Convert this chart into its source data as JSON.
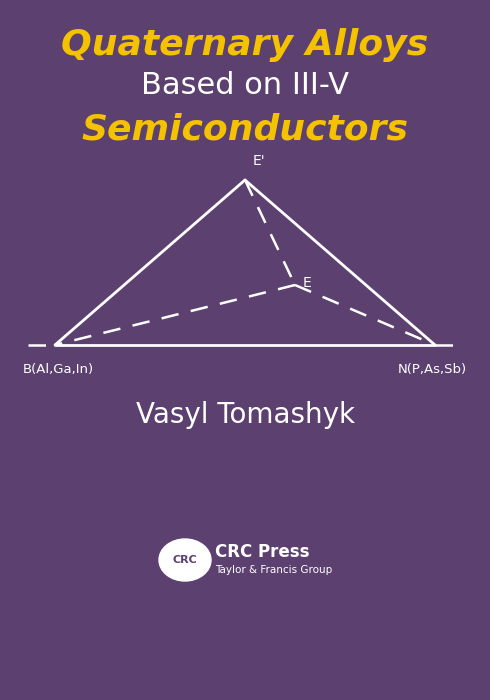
{
  "bg_color": "#5c4070",
  "title_line1": "Quaternary Alloys",
  "title_line2": "Based on III-V",
  "title_line3": "Semiconductors",
  "title_color1": "#f5c200",
  "title_color2": "#ffffff",
  "author": "Vasyl Tomashyk",
  "author_color": "#ffffff",
  "label_left": "B(Al,Ga,In)",
  "label_right": "N(P,As,Sb)",
  "label_color": "#ffffff",
  "apex_label": "E'",
  "inner_label": "E",
  "triangle_color": "#ffffff",
  "dashed_color": "#ffffff",
  "crc_text": "CRC Press",
  "crc_subtext": "Taylor & Francis Group",
  "fig_width": 4.9,
  "fig_height": 7.0,
  "dpi": 100
}
